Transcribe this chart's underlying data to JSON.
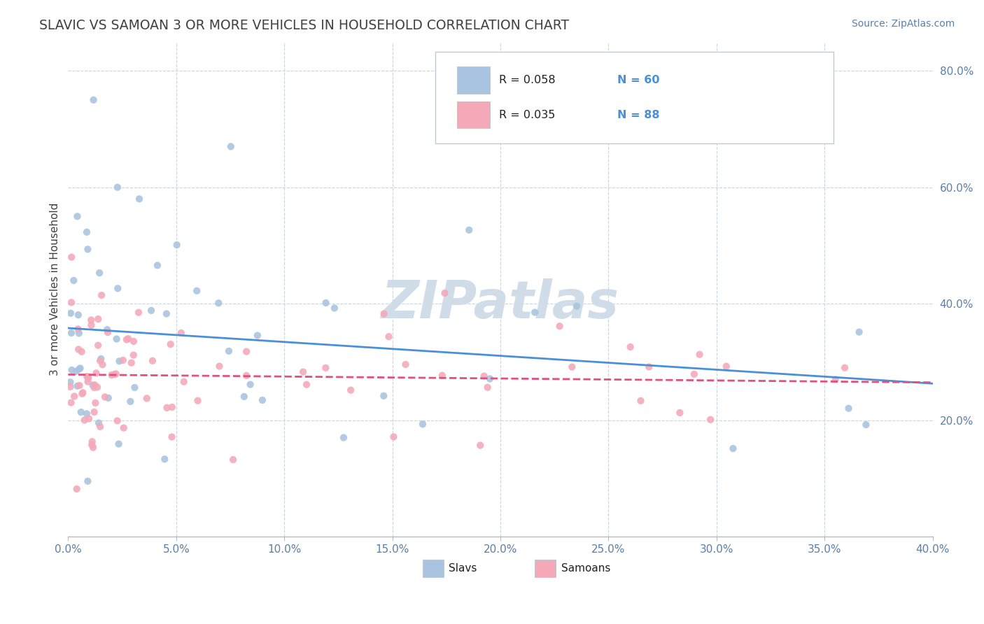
{
  "title": "SLAVIC VS SAMOAN 3 OR MORE VEHICLES IN HOUSEHOLD CORRELATION CHART",
  "source_text": "Source: ZipAtlas.com",
  "ylabel": "3 or more Vehicles in Household",
  "xlim": [
    0.0,
    0.4
  ],
  "ylim": [
    0.0,
    0.85
  ],
  "slavs_R": 0.058,
  "slavs_N": 60,
  "samoans_R": 0.035,
  "samoans_N": 88,
  "slav_color": "#a8c4e0",
  "samoan_color": "#f4a8b8",
  "slav_line_color": "#4a90d9",
  "samoan_line_color": "#e05080",
  "watermark": "ZIPatlas",
  "watermark_color": "#d0dde8",
  "background_color": "#ffffff",
  "grid_color": "#c8d4de",
  "title_color": "#404040",
  "tick_color": "#5a7fa8"
}
